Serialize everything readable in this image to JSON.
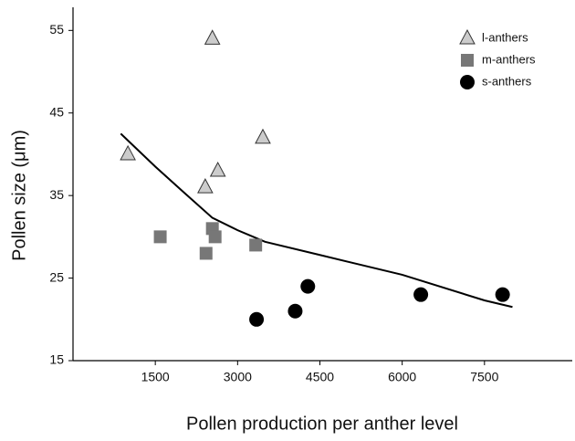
{
  "chart_data": {
    "type": "scatter",
    "xlabel": "Pollen production per anther level",
    "ylabel": "Pollen size (μm)",
    "xlim": [
      0,
      9100
    ],
    "ylim": [
      15,
      57.8
    ],
    "xticks": [
      1500,
      3000,
      4500,
      6000,
      7500
    ],
    "yticks": [
      15,
      25,
      35,
      45,
      55
    ],
    "legend": "upper right",
    "series": [
      {
        "name": "l-anthers",
        "marker": "triangle",
        "color": "#cccccc",
        "x": [
          1000,
          2540,
          3460,
          2640,
          2410
        ],
        "values": [
          40,
          54,
          42,
          38,
          36
        ]
      },
      {
        "name": "m-anthers",
        "marker": "square",
        "color": "#777777",
        "x": [
          1590,
          2425,
          2540,
          2590,
          3330
        ],
        "values": [
          30,
          28,
          31,
          30,
          29
        ]
      },
      {
        "name": "s-anthers",
        "marker": "circle",
        "color": "#000000",
        "x": [
          3345,
          4050,
          4280,
          6340,
          7830
        ],
        "values": [
          20,
          21,
          24,
          23,
          23
        ]
      }
    ],
    "trendline": {
      "color": "#000000",
      "x": [
        870,
        1500,
        2000,
        2540,
        3000,
        3500,
        4500,
        6000,
        7500,
        8010
      ],
      "values": [
        42.5,
        38.5,
        35.5,
        32.3,
        30.8,
        29.4,
        27.8,
        25.4,
        22.3,
        21.5
      ]
    }
  }
}
